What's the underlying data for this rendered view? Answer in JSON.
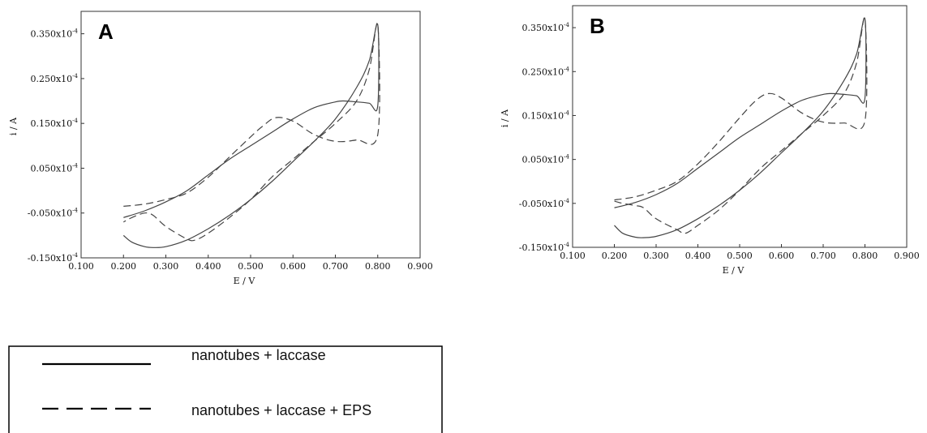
{
  "chart_data": [
    {
      "type": "line",
      "panel_label": "A",
      "xlabel": "E / V",
      "ylabel": "i / A",
      "xlim": [
        0.1,
        0.9
      ],
      "ylim": [
        -0.15,
        0.4
      ],
      "x_ticks": [
        "0.100",
        "0.200",
        "0.300",
        "0.400",
        "0.500",
        "0.600",
        "0.700",
        "0.800",
        "0.900"
      ],
      "y_ticks": [
        {
          "value": 0.35,
          "mantissa": "0.350x10",
          "exponent": "-4"
        },
        {
          "value": 0.25,
          "mantissa": "0.250x10",
          "exponent": "-4"
        },
        {
          "value": 0.15,
          "mantissa": "0.150x10",
          "exponent": "-4"
        },
        {
          "value": 0.05,
          "mantissa": "0.050x10",
          "exponent": "-4"
        },
        {
          "value": -0.05,
          "mantissa": "-0.050x10",
          "exponent": "-4"
        },
        {
          "value": -0.15,
          "mantissa": "-0.150x10",
          "exponent": "-4"
        }
      ],
      "y_unit_multiplier": "x10^-4",
      "series": [
        {
          "name": "nanotubes + laccase",
          "style": "solid",
          "x": [
            0.2,
            0.22,
            0.25,
            0.27,
            0.3,
            0.35,
            0.4,
            0.45,
            0.5,
            0.55,
            0.6,
            0.65,
            0.7,
            0.75,
            0.78,
            0.8,
            0.8,
            0.78,
            0.75,
            0.72,
            0.7,
            0.65,
            0.6,
            0.55,
            0.5,
            0.45,
            0.4,
            0.35,
            0.3,
            0.25,
            0.2
          ],
          "y": [
            -0.1,
            -0.115,
            -0.125,
            -0.127,
            -0.125,
            -0.11,
            -0.085,
            -0.055,
            -0.02,
            0.02,
            0.065,
            0.11,
            0.16,
            0.23,
            0.29,
            0.37,
            0.19,
            0.195,
            0.198,
            0.2,
            0.198,
            0.185,
            0.16,
            0.13,
            0.1,
            0.07,
            0.035,
            0.0,
            -0.025,
            -0.045,
            -0.06
          ]
        },
        {
          "name": "nanotubes + laccase + EPS",
          "style": "dashed",
          "x": [
            0.2,
            0.25,
            0.3,
            0.35,
            0.4,
            0.45,
            0.5,
            0.53,
            0.56,
            0.6,
            0.65,
            0.7,
            0.75,
            0.8,
            0.8,
            0.78,
            0.75,
            0.7,
            0.65,
            0.6,
            0.55,
            0.5,
            0.45,
            0.4,
            0.37,
            0.35,
            0.3,
            0.27,
            0.25,
            0.22,
            0.2
          ],
          "y": [
            -0.035,
            -0.03,
            -0.02,
            -0.005,
            0.03,
            0.075,
            0.12,
            0.145,
            0.163,
            0.155,
            0.125,
            0.11,
            0.113,
            0.125,
            0.37,
            0.27,
            0.2,
            0.15,
            0.11,
            0.07,
            0.03,
            -0.02,
            -0.06,
            -0.095,
            -0.11,
            -0.108,
            -0.08,
            -0.055,
            -0.05,
            -0.06,
            -0.07
          ]
        }
      ]
    },
    {
      "type": "line",
      "panel_label": "B",
      "xlabel": "E / V",
      "ylabel": "i / A",
      "xlim": [
        0.1,
        0.9
      ],
      "ylim": [
        -0.15,
        0.4
      ],
      "x_ticks": [
        "0.100",
        "0.200",
        "0.300",
        "0.400",
        "0.500",
        "0.600",
        "0.700",
        "0.800",
        "0.900"
      ],
      "y_ticks": [
        {
          "value": 0.35,
          "mantissa": "0.350x10",
          "exponent": "-4"
        },
        {
          "value": 0.25,
          "mantissa": "0.250x10",
          "exponent": "-4"
        },
        {
          "value": 0.15,
          "mantissa": "0.150x10",
          "exponent": "-4"
        },
        {
          "value": 0.05,
          "mantissa": "0.050x10",
          "exponent": "-4"
        },
        {
          "value": -0.05,
          "mantissa": "-0.050x10",
          "exponent": "-4"
        },
        {
          "value": -0.15,
          "mantissa": "-0.150x10",
          "exponent": "-4"
        }
      ],
      "y_unit_multiplier": "x10^-4",
      "series": [
        {
          "name": "nanotubes + laccase",
          "style": "solid",
          "x": [
            0.2,
            0.22,
            0.25,
            0.27,
            0.3,
            0.35,
            0.4,
            0.45,
            0.5,
            0.55,
            0.6,
            0.65,
            0.7,
            0.75,
            0.78,
            0.8,
            0.8,
            0.78,
            0.75,
            0.72,
            0.7,
            0.65,
            0.6,
            0.55,
            0.5,
            0.45,
            0.4,
            0.35,
            0.3,
            0.25,
            0.2
          ],
          "y": [
            -0.1,
            -0.118,
            -0.127,
            -0.128,
            -0.125,
            -0.11,
            -0.085,
            -0.055,
            -0.02,
            0.02,
            0.065,
            0.11,
            0.16,
            0.23,
            0.29,
            0.37,
            0.19,
            0.195,
            0.198,
            0.2,
            0.198,
            0.185,
            0.16,
            0.13,
            0.1,
            0.065,
            0.03,
            -0.005,
            -0.03,
            -0.048,
            -0.06
          ]
        },
        {
          "name": "nanotubes + laccase + EPS",
          "style": "dashed",
          "x": [
            0.2,
            0.25,
            0.3,
            0.35,
            0.4,
            0.45,
            0.5,
            0.54,
            0.57,
            0.6,
            0.65,
            0.7,
            0.75,
            0.8,
            0.8,
            0.78,
            0.75,
            0.7,
            0.65,
            0.6,
            0.55,
            0.5,
            0.45,
            0.4,
            0.37,
            0.35,
            0.3,
            0.27,
            0.25,
            0.22,
            0.2
          ],
          "y": [
            -0.042,
            -0.035,
            -0.02,
            0.0,
            0.04,
            0.09,
            0.145,
            0.185,
            0.2,
            0.19,
            0.155,
            0.135,
            0.133,
            0.138,
            0.37,
            0.27,
            0.2,
            0.15,
            0.11,
            0.07,
            0.03,
            -0.02,
            -0.065,
            -0.1,
            -0.118,
            -0.11,
            -0.085,
            -0.06,
            -0.055,
            -0.05,
            -0.045
          ]
        }
      ]
    }
  ],
  "legend": {
    "items": [
      {
        "label": "nanotubes + laccase",
        "style": "solid"
      },
      {
        "label": "nanotubes + laccase + EPS",
        "style": "dashed"
      }
    ]
  }
}
